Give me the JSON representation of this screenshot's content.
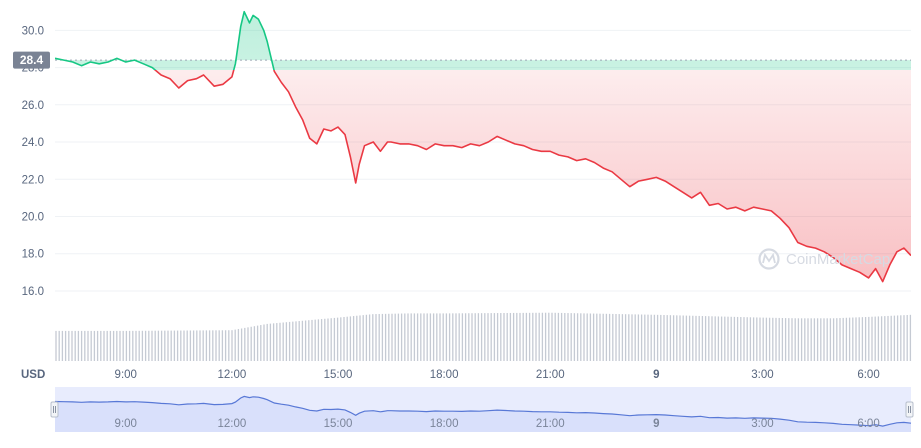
{
  "chart_data": {
    "type": "line",
    "title": "",
    "currency_label": "USD",
    "reference_value": 28.4,
    "reference_label": "28.4",
    "ylim": [
      14.6,
      31.2
    ],
    "y_ticks": [
      {
        "value": 16,
        "label": "16.0"
      },
      {
        "value": 18,
        "label": "18.0"
      },
      {
        "value": 20,
        "label": "20.0"
      },
      {
        "value": 22,
        "label": "22.0"
      },
      {
        "value": 24,
        "label": "24.0"
      },
      {
        "value": 26,
        "label": "26.0"
      },
      {
        "value": 28,
        "label": "28.0"
      },
      {
        "value": 30,
        "label": "30.0"
      }
    ],
    "xlim": [
      7.0,
      31.2
    ],
    "x_ticks": [
      {
        "value": 9,
        "label": "9:00"
      },
      {
        "value": 12,
        "label": "12:00"
      },
      {
        "value": 15,
        "label": "15:00"
      },
      {
        "value": 18,
        "label": "18:00"
      },
      {
        "value": 21,
        "label": "21:00"
      },
      {
        "value": 24,
        "label": "9",
        "bold": true
      },
      {
        "value": 27,
        "label": "3:00"
      },
      {
        "value": 30,
        "label": "6:00"
      }
    ],
    "series": [
      {
        "name": "",
        "x": [
          7.0,
          7.25,
          7.5,
          7.75,
          8.0,
          8.25,
          8.5,
          8.75,
          9.0,
          9.25,
          9.5,
          9.75,
          10.0,
          10.25,
          10.5,
          10.75,
          11.0,
          11.2,
          11.5,
          11.75,
          12.0,
          12.1,
          12.25,
          12.35,
          12.5,
          12.6,
          12.75,
          12.9,
          13.0,
          13.2,
          13.4,
          13.6,
          13.8,
          14.0,
          14.2,
          14.4,
          14.6,
          14.8,
          15.0,
          15.2,
          15.35,
          15.5,
          15.6,
          15.75,
          16.0,
          16.2,
          16.4,
          16.5,
          16.75,
          17.0,
          17.25,
          17.5,
          17.75,
          18.0,
          18.25,
          18.5,
          18.75,
          19.0,
          19.25,
          19.5,
          19.75,
          20.0,
          20.25,
          20.5,
          20.75,
          21.0,
          21.25,
          21.5,
          21.75,
          22.0,
          22.25,
          22.5,
          22.75,
          23.0,
          23.25,
          23.5,
          23.75,
          24.0,
          24.25,
          24.5,
          24.75,
          25.0,
          25.25,
          25.5,
          25.75,
          26.0,
          26.25,
          26.5,
          26.75,
          27.0,
          27.25,
          27.5,
          27.75,
          28.0,
          28.25,
          28.5,
          28.75,
          29.0,
          29.25,
          29.5,
          29.75,
          30.0,
          30.2,
          30.4,
          30.6,
          30.8,
          31.0,
          31.2
        ],
        "y": [
          28.5,
          28.4,
          28.3,
          28.1,
          28.3,
          28.2,
          28.3,
          28.5,
          28.3,
          28.4,
          28.2,
          28.0,
          27.6,
          27.4,
          26.9,
          27.3,
          27.4,
          27.6,
          27.0,
          27.1,
          27.5,
          28.2,
          30.2,
          31.0,
          30.4,
          30.8,
          30.6,
          30.0,
          29.4,
          27.8,
          27.2,
          26.7,
          25.9,
          25.2,
          24.2,
          23.9,
          24.7,
          24.6,
          24.8,
          24.4,
          23.2,
          21.8,
          22.8,
          23.8,
          24.0,
          23.5,
          24.0,
          24.0,
          23.9,
          23.9,
          23.8,
          23.6,
          23.9,
          23.8,
          23.8,
          23.7,
          23.9,
          23.8,
          24.0,
          24.3,
          24.1,
          23.9,
          23.8,
          23.6,
          23.5,
          23.5,
          23.3,
          23.2,
          23.0,
          23.1,
          22.9,
          22.6,
          22.4,
          22.0,
          21.6,
          21.9,
          22.0,
          22.1,
          21.9,
          21.6,
          21.3,
          21.0,
          21.3,
          20.6,
          20.7,
          20.4,
          20.5,
          20.3,
          20.5,
          20.4,
          20.3,
          19.9,
          19.4,
          18.6,
          18.4,
          18.3,
          18.1,
          17.8,
          17.4,
          17.2,
          17.0,
          16.7,
          17.2,
          16.5,
          17.4,
          18.1,
          18.3,
          17.9
        ]
      }
    ],
    "volume": {
      "x": [
        7.0,
        9.0,
        12.0,
        13.0,
        15.0,
        16.0,
        17.0,
        18.0,
        21.0,
        24.0,
        27.0,
        28.0,
        29.0,
        30.0,
        31.2
      ],
      "values": [
        0.43,
        0.43,
        0.44,
        0.53,
        0.62,
        0.67,
        0.68,
        0.68,
        0.69,
        0.66,
        0.62,
        0.61,
        0.61,
        0.63,
        0.66
      ]
    },
    "watermark": "CoinMarketCap",
    "colors": {
      "up": "#16c784",
      "down": "#ea3943",
      "axis_text": "#58667e",
      "grid": "#eff2f5",
      "volume": "#c5cad3",
      "navigator_fill": "#e8ecfd",
      "navigator_line": "#5878d6"
    }
  }
}
